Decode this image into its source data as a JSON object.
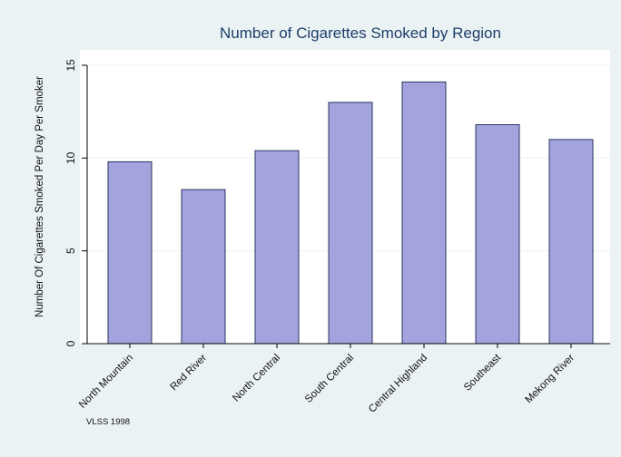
{
  "chart_data": {
    "type": "bar",
    "title": "Number of Cigarettes Smoked by Region",
    "xlabel": "",
    "ylabel": "Number Of Cigarettes Smoked Per Day Per Smoker",
    "categories": [
      "North Mountain",
      "Red River",
      "North Central",
      "South Central",
      "Central Highland",
      "Southeast",
      "Mekong River"
    ],
    "values": [
      9.8,
      8.3,
      10.4,
      13.0,
      14.1,
      11.8,
      11.0
    ],
    "ylim": [
      0,
      15
    ],
    "yticks": [
      0,
      5,
      10,
      15
    ],
    "grid": true,
    "bar_color": "#a3a3dd",
    "bar_edge_color": "#2a3560",
    "note": "VLSS 1998"
  }
}
